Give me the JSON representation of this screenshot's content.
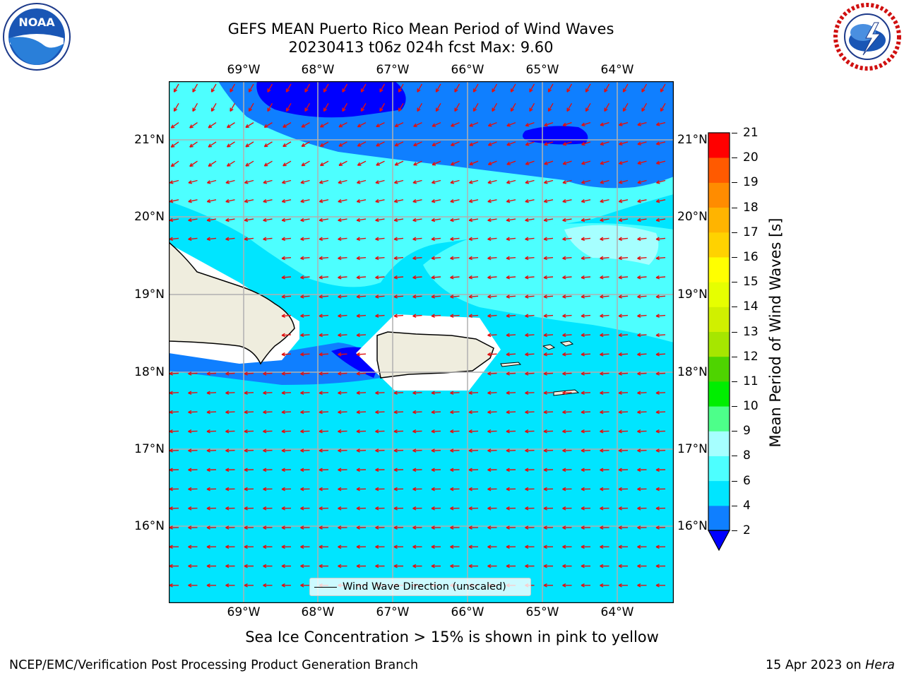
{
  "header": {
    "title_line1": "GEFS MEAN Puerto Rico Mean Period of Wind Waves",
    "title_line2": "20230413 t06z 024h fcst   Max: 9.60"
  },
  "logos": {
    "left": "noaa-logo",
    "right": "national-weather-service-logo"
  },
  "map": {
    "lon_ticks": [
      "69°W",
      "68°W",
      "67°W",
      "66°W",
      "65°W",
      "64°W"
    ],
    "lat_ticks": [
      "21°N",
      "20°N",
      "19°N",
      "18°N",
      "17°N",
      "16°N"
    ],
    "legend_label": "Wind Wave Direction (unscaled)",
    "arrow_color": "#e01010",
    "land_color": "#efedde",
    "grid": true
  },
  "colorbar": {
    "label": "Mean Period of Wind Waves [s]",
    "ticks": [
      "21",
      "20",
      "19",
      "18",
      "17",
      "16",
      "15",
      "14",
      "13",
      "12",
      "11",
      "10",
      "9",
      "8",
      "6",
      "4",
      "2"
    ],
    "bands": [
      "#0000ff",
      "#0f7fff",
      "#00e5ff",
      "#4dffff",
      "#a6ffff",
      "#4dff8a",
      "#00ee00",
      "#4ed400",
      "#a6e600",
      "#d0f000",
      "#e6ff00",
      "#ffff00",
      "#ffd200",
      "#ffb400",
      "#ff8c00",
      "#ff5a00",
      "#ff2800",
      "#ff0000"
    ],
    "levels": [
      2,
      4,
      6,
      8,
      9,
      10,
      11,
      12,
      13,
      14,
      15,
      16,
      17,
      18,
      19,
      20,
      21
    ]
  },
  "notes": {
    "sea_ice": "Sea Ice Concentration > 15% is shown in pink to yellow"
  },
  "footer": {
    "left": "NCEP/EMC/Verification Post Processing Product Generation Branch",
    "right_date": "15 Apr 2023 on ",
    "right_host": "Hera"
  }
}
